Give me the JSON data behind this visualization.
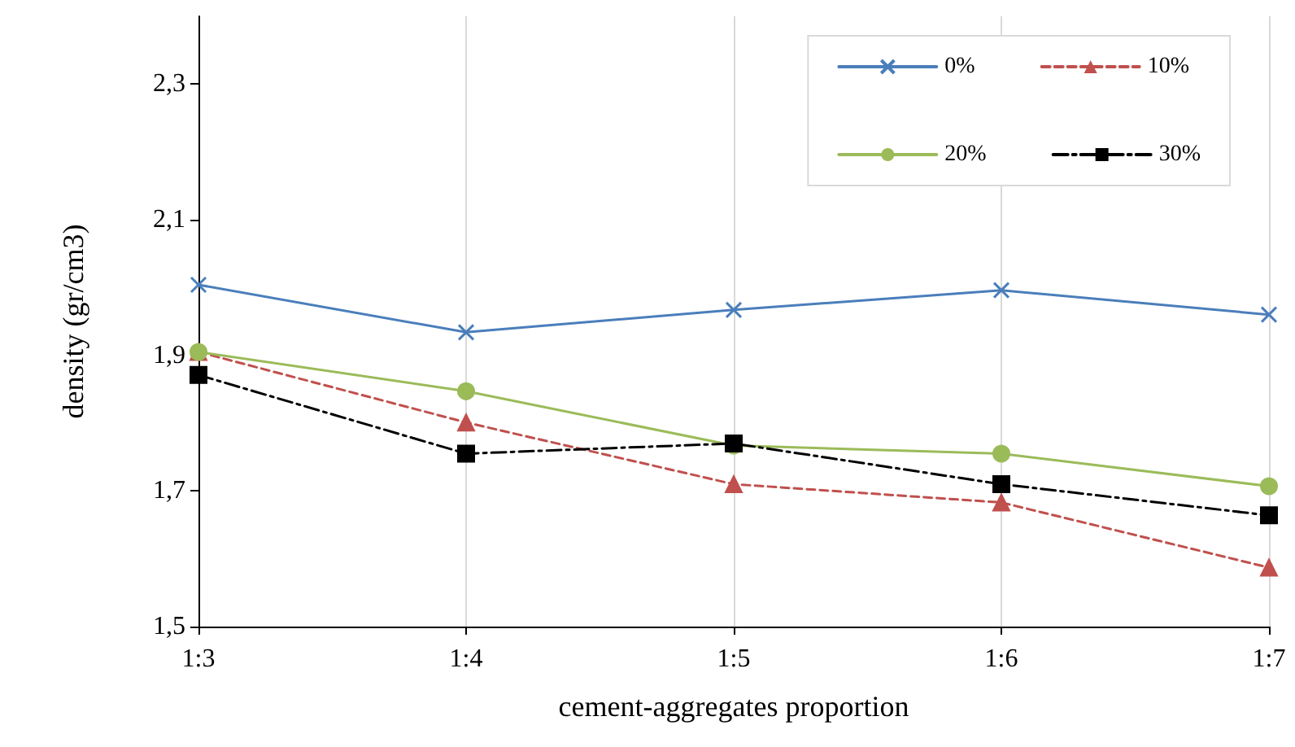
{
  "chart_data": {
    "type": "line",
    "xlabel": "cement-aggregates proportion",
    "ylabel": "density (gr/cm3)",
    "categories": [
      "1:3",
      "1:4",
      "1:5",
      "1:6",
      "1:7"
    ],
    "series": [
      {
        "name": "0%",
        "color": "#4a7ebb",
        "marker": "cross",
        "line_style": "solid",
        "values": [
          2.004,
          1.934,
          1.967,
          1.996,
          1.96
        ]
      },
      {
        "name": "10%",
        "color": "#c0504d",
        "marker": "triangle",
        "line_style": "dashed",
        "values": [
          1.905,
          1.801,
          1.71,
          1.683,
          1.587
        ]
      },
      {
        "name": "20%",
        "color": "#9bbb59",
        "marker": "circle",
        "line_style": "solid",
        "values": [
          1.905,
          1.847,
          1.767,
          1.755,
          1.707
        ]
      },
      {
        "name": "30%",
        "color": "#000000",
        "marker": "square",
        "line_style": "dashdot",
        "values": [
          1.871,
          1.755,
          1.77,
          1.71,
          1.664
        ]
      }
    ],
    "ylim": [
      1.5,
      2.4
    ],
    "yticks": [
      {
        "value": 1.5,
        "label": "1,5"
      },
      {
        "value": 1.7,
        "label": "1,7"
      },
      {
        "value": 1.9,
        "label": "1,9"
      },
      {
        "value": 2.1,
        "label": "2,1"
      },
      {
        "value": 2.3,
        "label": "2,3"
      }
    ],
    "grid": "x",
    "legend": "top right"
  }
}
